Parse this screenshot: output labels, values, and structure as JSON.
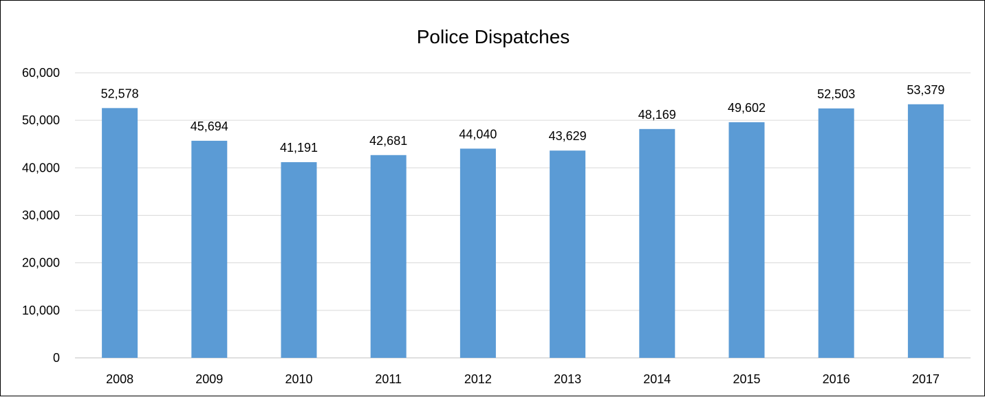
{
  "chart_data": {
    "type": "bar",
    "title": "Police Dispatches",
    "xlabel": "",
    "ylabel": "",
    "categories": [
      "2008",
      "2009",
      "2010",
      "2011",
      "2012",
      "2013",
      "2014",
      "2015",
      "2016",
      "2017"
    ],
    "values": [
      52578,
      45694,
      41191,
      42681,
      44040,
      43629,
      48169,
      49602,
      52503,
      53379
    ],
    "data_labels": [
      "52,578",
      "45,694",
      "41,191",
      "42,681",
      "44,040",
      "43,629",
      "48,169",
      "49,602",
      "52,503",
      "53,379"
    ],
    "ylim": [
      0,
      60000
    ],
    "yticks": [
      0,
      10000,
      20000,
      30000,
      40000,
      50000,
      60000
    ],
    "ytick_labels": [
      "0",
      "10,000",
      "20,000",
      "30,000",
      "40,000",
      "50,000",
      "60,000"
    ],
    "grid": true,
    "legend": "none",
    "bar_color": "#5b9bd5"
  }
}
